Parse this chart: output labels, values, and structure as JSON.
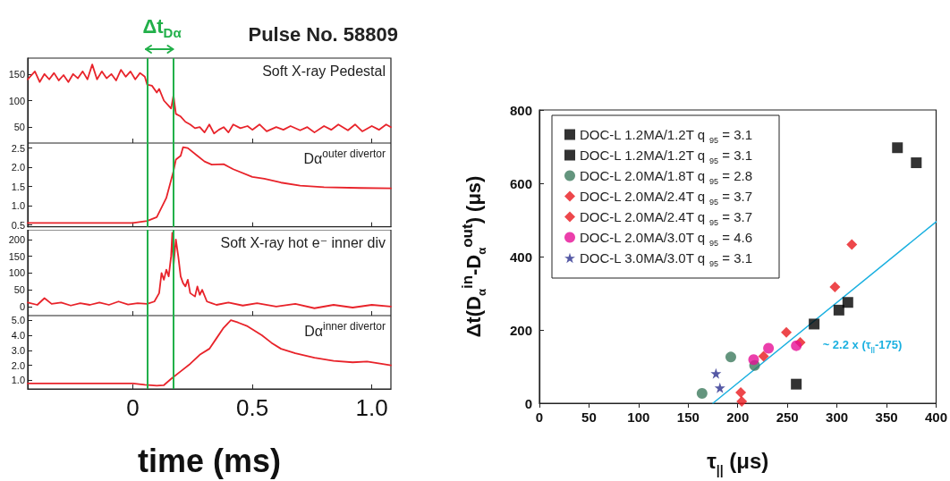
{
  "chart_data": [
    {
      "type": "line",
      "title": "Pulse No. 58809",
      "xlim": [
        -0.44,
        1.08
      ],
      "xticks": [
        0,
        0.5,
        1
      ],
      "ylim": [
        20,
        180
      ],
      "yticks": [
        50,
        100,
        150
      ],
      "tick_labels": "y",
      "grid": false,
      "legend": false,
      "marker": "none",
      "annotations": [
        "Δt$_{Dα}$",
        "Soft X-ray Pedestal"
      ],
      "ref_lines": [
        {
          "axis": "x",
          "value": 0.056,
          "color": "#22b04a"
        },
        {
          "axis": "x",
          "value": 0.17,
          "color": "#22b04a"
        }
      ],
      "series": [
        {
          "color": "#e8232a",
          "x": [
            -0.44,
            -0.41,
            -0.39,
            -0.37,
            -0.35,
            -0.33,
            -0.31,
            -0.29,
            -0.27,
            -0.25,
            -0.23,
            -0.21,
            -0.19,
            -0.17,
            -0.15,
            -0.13,
            -0.11,
            -0.09,
            -0.07,
            -0.05,
            -0.03,
            -0.01,
            0.01,
            0.03,
            0.05,
            0.06,
            0.08,
            0.1,
            0.11,
            0.13,
            0.15,
            0.16,
            0.17,
            0.18,
            0.2,
            0.22,
            0.24,
            0.26,
            0.28,
            0.3,
            0.32,
            0.34,
            0.36,
            0.38,
            0.4,
            0.42,
            0.45,
            0.48,
            0.5,
            0.53,
            0.56,
            0.6,
            0.63,
            0.66,
            0.7,
            0.73,
            0.76,
            0.8,
            0.83,
            0.86,
            0.9,
            0.93,
            0.96,
            1.0,
            1.03,
            1.06,
            1.08
          ],
          "values": [
            140,
            155,
            135,
            150,
            140,
            152,
            138,
            148,
            135,
            150,
            142,
            155,
            140,
            168,
            140,
            155,
            142,
            150,
            138,
            158,
            145,
            155,
            140,
            152,
            145,
            130,
            128,
            115,
            122,
            100,
            90,
            85,
            110,
            75,
            70,
            60,
            55,
            48,
            50,
            40,
            55,
            38,
            45,
            50,
            40,
            55,
            48,
            52,
            45,
            55,
            42,
            50,
            45,
            52,
            44,
            50,
            40,
            52,
            45,
            55,
            44,
            55,
            42,
            52,
            45,
            55,
            50
          ]
        }
      ]
    },
    {
      "type": "line",
      "xlim": [
        -0.44,
        1.08
      ],
      "xticks": [
        0,
        0.5,
        1
      ],
      "ylim": [
        0.45,
        2.63
      ],
      "yticks": [
        {
          "value": 0.5,
          "label": "0.5"
        },
        {
          "value": 1,
          "label": "1.0"
        },
        {
          "value": 1.5,
          "label": "1.5"
        },
        {
          "value": 2,
          "label": "2.0"
        },
        {
          "value": 2.5,
          "label": "2.5"
        }
      ],
      "tick_labels": "y",
      "grid": false,
      "legend": false,
      "marker": "none",
      "annotations": [
        "Dα$^{outer divertor}$"
      ],
      "ref_lines": [
        {
          "axis": "x",
          "value": 0.056,
          "color": "#22b04a"
        },
        {
          "axis": "x",
          "value": 0.17,
          "color": "#22b04a"
        }
      ],
      "series": [
        {
          "color": "#e8232a",
          "x": [
            -0.44,
            -0.2,
            0,
            0.06,
            0.1,
            0.14,
            0.17,
            0.18,
            0.2,
            0.21,
            0.23,
            0.27,
            0.3,
            0.33,
            0.38,
            0.42,
            0.5,
            0.55,
            0.62,
            0.7,
            0.8,
            0.95,
            1.08
          ],
          "values": [
            0.55,
            0.55,
            0.55,
            0.6,
            0.7,
            1.2,
            1.9,
            2.2,
            2.3,
            2.52,
            2.5,
            2.3,
            2.15,
            2.07,
            2.08,
            1.95,
            1.75,
            1.7,
            1.6,
            1.52,
            1.48,
            1.46,
            1.45
          ]
        }
      ]
    },
    {
      "type": "line",
      "xlim": [
        -0.44,
        1.08
      ],
      "xticks": [
        0,
        0.5,
        1
      ],
      "ylim": [
        -27,
        229
      ],
      "yticks": [
        0,
        50,
        100,
        150,
        200
      ],
      "tick_labels": "y",
      "grid": false,
      "legend": false,
      "marker": "none",
      "annotations": [
        "Soft X-ray hot e⁻ inner div"
      ],
      "ref_lines": [
        {
          "axis": "x",
          "value": 0.056,
          "color": "#22b04a"
        },
        {
          "axis": "x",
          "value": 0.17,
          "color": "#22b04a"
        }
      ],
      "series": [
        {
          "color": "#e8232a",
          "x": [
            -0.44,
            -0.4,
            -0.37,
            -0.34,
            -0.3,
            -0.26,
            -0.22,
            -0.18,
            -0.14,
            -0.1,
            -0.06,
            -0.02,
            0.02,
            0.06,
            0.09,
            0.11,
            0.12,
            0.13,
            0.14,
            0.15,
            0.16,
            0.165,
            0.17,
            0.18,
            0.19,
            0.2,
            0.21,
            0.22,
            0.23,
            0.24,
            0.26,
            0.27,
            0.28,
            0.29,
            0.31,
            0.33,
            0.35,
            0.4,
            0.46,
            0.52,
            0.6,
            0.68,
            0.76,
            0.84,
            0.92,
            1.0,
            1.08
          ],
          "values": [
            12,
            5,
            25,
            8,
            12,
            3,
            10,
            5,
            12,
            5,
            15,
            6,
            10,
            8,
            15,
            40,
            100,
            80,
            110,
            90,
            150,
            220,
            120,
            200,
            150,
            90,
            70,
            60,
            80,
            40,
            30,
            60,
            35,
            50,
            15,
            10,
            5,
            12,
            3,
            10,
            0,
            8,
            -5,
            5,
            -3,
            5,
            0
          ]
        }
      ]
    },
    {
      "type": "line",
      "xlabel": "time (ms)",
      "xlim": [
        -0.44,
        1.08
      ],
      "xticks": [
        0,
        0.5,
        {
          "value": 1,
          "label": "1.0"
        }
      ],
      "ylim": [
        0.43,
        5.31
      ],
      "yticks": [
        {
          "value": 1,
          "label": "1.0"
        },
        {
          "value": 2,
          "label": "2.0"
        },
        {
          "value": 3,
          "label": "3.0"
        },
        {
          "value": 4,
          "label": "4.0"
        },
        {
          "value": 5,
          "label": "5.0"
        }
      ],
      "grid": false,
      "legend": false,
      "marker": "none",
      "annotations": [
        "Dα$^{inner divertor}$"
      ],
      "ref_lines": [
        {
          "axis": "x",
          "value": 0.056,
          "color": "#22b04a"
        },
        {
          "axis": "x",
          "value": 0.17,
          "color": "#22b04a"
        }
      ],
      "series": [
        {
          "color": "#e8232a",
          "x": [
            -0.44,
            -0.2,
            0,
            0.05,
            0.1,
            0.13,
            0.16,
            0.2,
            0.24,
            0.28,
            0.32,
            0.35,
            0.38,
            0.41,
            0.44,
            0.48,
            0.54,
            0.58,
            0.62,
            0.68,
            0.76,
            0.84,
            0.92,
            0.98,
            1.04,
            1.08
          ],
          "values": [
            0.8,
            0.8,
            0.8,
            0.7,
            0.65,
            0.68,
            1.1,
            1.6,
            2.1,
            2.7,
            3.1,
            3.8,
            4.5,
            5.0,
            4.85,
            4.6,
            4.0,
            3.5,
            3.1,
            2.8,
            2.5,
            2.3,
            2.2,
            2.25,
            2.1,
            2.0
          ]
        }
      ]
    },
    {
      "type": "scatter",
      "xlabel": "τ$_{||}$ (μs)",
      "ylabel": "Δt(D$_{α}$$^{in}$-D$_{α}$$^{out}$) (μs)",
      "xlim": [
        0,
        400
      ],
      "xticks": [
        0,
        50,
        100,
        150,
        200,
        250,
        300,
        350,
        400
      ],
      "ylim": [
        0,
        800
      ],
      "yticks": [
        0,
        200,
        400,
        600,
        800
      ],
      "grid": false,
      "legend": "top left",
      "annotations": [
        "~ 2.2 x (τ$_{||}$-175)"
      ],
      "series": [
        {
          "name": "DOC-L 1.2MA/1.2T q $_{95}$ = 3.1",
          "color": "#000000",
          "marker": "square",
          "x": [
            277,
            302,
            311,
            259
          ],
          "values": [
            216,
            254,
            275,
            52
          ]
        },
        {
          "name": "DOC-L 1.2MA/1.2T q $_{95}$ = 3.1",
          "color": "#000000",
          "marker": "square",
          "x": [
            361,
            380
          ],
          "values": [
            697,
            656
          ]
        },
        {
          "name": "DOC-L 2.0MA/1.8T q $_{95}$ = 2.8",
          "color": "#3d7a5e",
          "marker": "circle",
          "x": [
            164,
            193,
            217
          ],
          "values": [
            27,
            126,
            103
          ]
        },
        {
          "name": "DOC-L 2.0MA/2.4T q $_{95}$ = 3.7",
          "color": "#e8191e",
          "marker": "diamond",
          "x": [
            203,
            204,
            249,
            263,
            226
          ],
          "values": [
            29,
            5,
            193,
            166,
            128
          ]
        },
        {
          "name": "DOC-L 2.0MA/2.4T q $_{95}$ = 3.7",
          "color": "#e8191e",
          "marker": "diamond",
          "x": [
            298,
            315
          ],
          "values": [
            317,
            433
          ]
        },
        {
          "name": "DOC-L 2.0MA/3.0T q $_{95}$ = 4.6",
          "color": "#e60f96",
          "x": [
            216,
            231,
            259
          ],
          "values": [
            119,
            150,
            157
          ]
        },
        {
          "name": "DOC-L 3.0MA/3.0T q $_{95}$ = 3.1",
          "color": "#2b2f8f",
          "marker": "star",
          "x": [
            178,
            182
          ],
          "values": [
            81,
            42
          ]
        },
        {
          "type": "line",
          "color": "#1ab0e0",
          "marker": "none",
          "x": [
            175,
            400
          ],
          "values": [
            0,
            495
          ]
        }
      ]
    }
  ]
}
